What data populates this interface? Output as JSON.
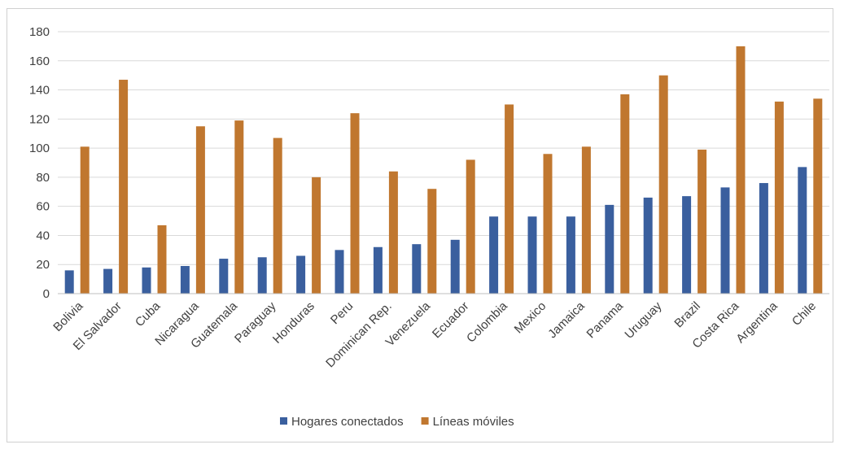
{
  "chart_data": {
    "type": "bar",
    "title": "",
    "xlabel": "",
    "ylabel": "",
    "ylim": [
      0,
      180
    ],
    "yticks": [
      0,
      20,
      40,
      60,
      80,
      100,
      120,
      140,
      160,
      180
    ],
    "grid": true,
    "legend_position": "bottom",
    "categories": [
      "Bolivia",
      "El Salvador",
      "Cuba",
      "Nicaragua",
      "Guatemala",
      "Paraguay",
      "Honduras",
      "Peru",
      "Dominican Rep.",
      "Venezuela",
      "Ecuador",
      "Colombia",
      "Mexico",
      "Jamaica",
      "Panama",
      "Uruguay",
      "Brazil",
      "Costa Rica",
      "Argentina",
      "Chile"
    ],
    "series": [
      {
        "name": "Hogares conectados",
        "color": "#3a5f9e",
        "values": [
          16,
          17,
          18,
          19,
          24,
          25,
          26,
          30,
          32,
          34,
          37,
          53,
          53,
          53,
          61,
          66,
          67,
          73,
          76,
          87
        ]
      },
      {
        "name": "Líneas móviles",
        "color": "#c0772f",
        "values": [
          101,
          147,
          47,
          115,
          119,
          107,
          80,
          124,
          84,
          72,
          92,
          130,
          96,
          101,
          137,
          150,
          99,
          170,
          132,
          134
        ]
      }
    ]
  }
}
